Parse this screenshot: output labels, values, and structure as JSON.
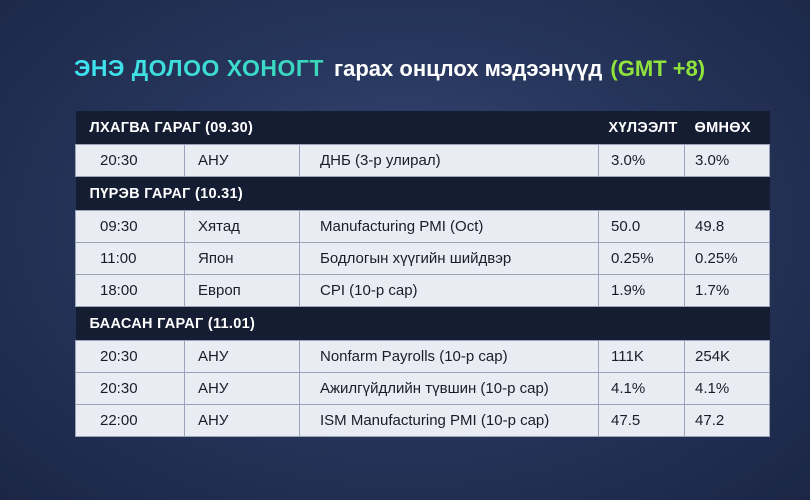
{
  "title": {
    "part1": "ЭНЭ ДОЛОО ХОНОГТ",
    "part2": "гарах онцлох мэдээнүүд",
    "part3": "(GMT +8)"
  },
  "headers": {
    "forecast": "ХҮЛЭЭЛТ",
    "previous": "ӨМНӨХ"
  },
  "days": [
    {
      "label": "ЛХАГВА ГАРАГ (09.30)",
      "rows": [
        {
          "time": "20:30",
          "country": "АНУ",
          "event": "ДНБ (3-р улирал)",
          "forecast": "3.0%",
          "previous": "3.0%"
        }
      ]
    },
    {
      "label": "ПҮРЭВ ГАРАГ (10.31)",
      "rows": [
        {
          "time": "09:30",
          "country": "Хятад",
          "event": "Manufacturing PMI (Oct)",
          "forecast": "50.0",
          "previous": "49.8"
        },
        {
          "time": "11:00",
          "country": "Япон",
          "event": "Бодлогын хүүгийн шийдвэр",
          "forecast": "0.25%",
          "previous": "0.25%"
        },
        {
          "time": "18:00",
          "country": "Европ",
          "event": "CPI (10-р сар)",
          "forecast": "1.9%",
          "previous": "1.7%"
        }
      ]
    },
    {
      "label": "БААСАН ГАРАГ (11.01)",
      "rows": [
        {
          "time": "20:30",
          "country": "АНУ",
          "event": "Nonfarm Payrolls (10-р сар)",
          "forecast": "111K",
          "previous": "254K"
        },
        {
          "time": "20:30",
          "country": "АНУ",
          "event": "Ажилгүйдлийн түвшин (10-р сар)",
          "forecast": "4.1%",
          "previous": "4.1%"
        },
        {
          "time": "22:00",
          "country": "АНУ",
          "event": "ISM Manufacturing PMI (10-р сар)",
          "forecast": "47.5",
          "previous": "47.2"
        }
      ]
    }
  ]
}
